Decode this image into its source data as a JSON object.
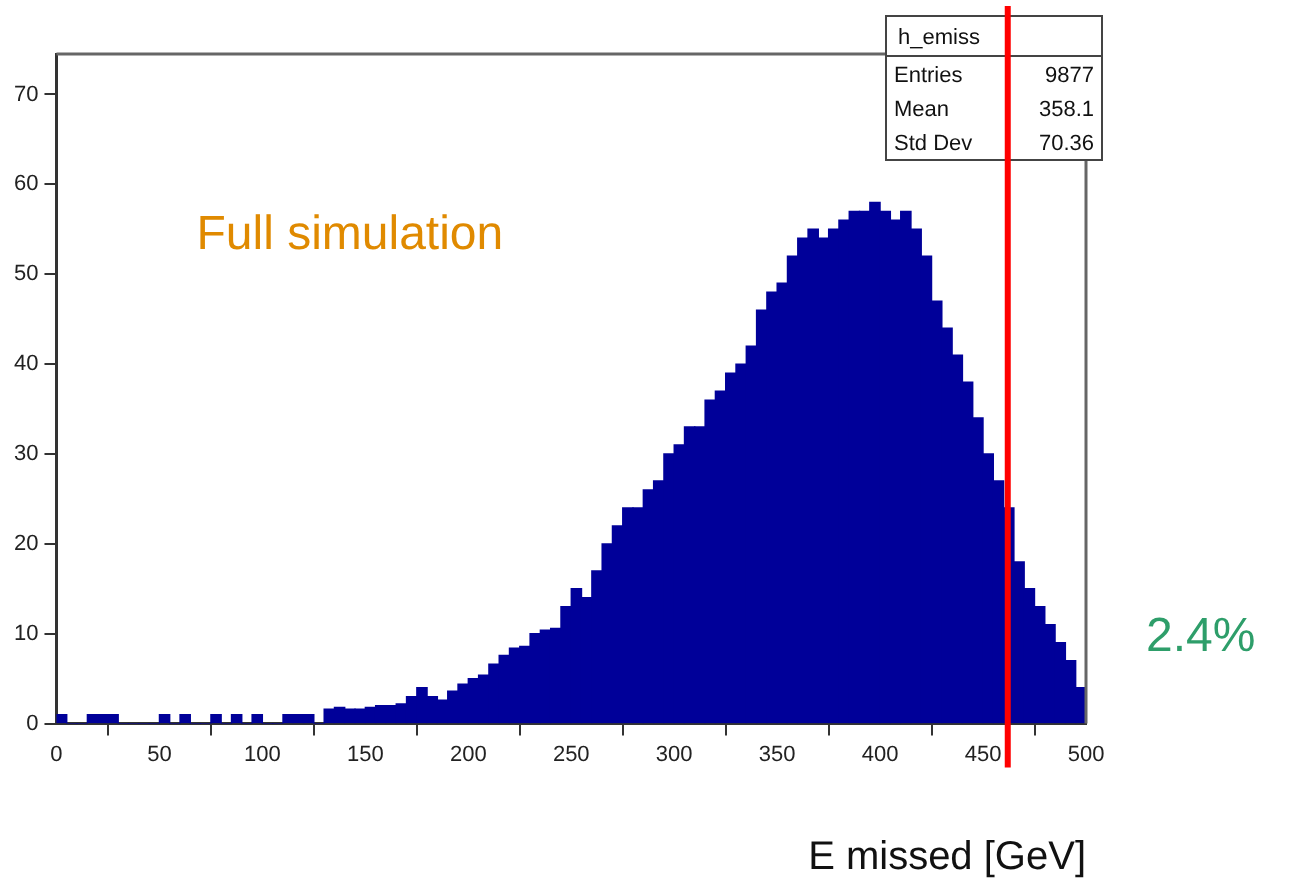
{
  "chart_data": {
    "type": "histogram",
    "xlabel": "E missed [GeV]",
    "bins": [
      0,
      5,
      10,
      15,
      20,
      25,
      30,
      35,
      40,
      45,
      50,
      55,
      60,
      65,
      70,
      75,
      80,
      85,
      90,
      95,
      100,
      105,
      110,
      115,
      120,
      125,
      130,
      135,
      140,
      145,
      150,
      155,
      160,
      165,
      170,
      175,
      180,
      185,
      190,
      195,
      200,
      205,
      210,
      215,
      220,
      225,
      230,
      235,
      240,
      245,
      250,
      255,
      260,
      265,
      270,
      275,
      280,
      285,
      290,
      295,
      300,
      305,
      310,
      315,
      320,
      325,
      330,
      335,
      340,
      345,
      350,
      355,
      360,
      365,
      370,
      375,
      380,
      385,
      390,
      395,
      400,
      405,
      410,
      415,
      420,
      425,
      430,
      435,
      440,
      445,
      450,
      455,
      460,
      465,
      470,
      475,
      480,
      485,
      490,
      495,
      500
    ],
    "values": [
      1,
      0,
      0,
      1,
      1,
      1,
      0,
      0,
      0,
      0,
      1,
      0,
      1,
      0,
      0,
      1,
      0,
      1,
      0,
      1,
      0,
      0,
      1,
      1,
      1,
      0,
      1.6,
      1.8,
      1.6,
      1.6,
      1.8,
      2,
      2,
      2.2,
      3,
      4,
      3,
      2.6,
      3.6,
      4.4,
      5,
      5.4,
      6.6,
      7.6,
      8.4,
      8.6,
      10,
      10.4,
      10.6,
      13,
      15,
      14,
      17,
      20,
      22,
      24,
      24,
      26,
      27,
      30,
      31,
      33,
      33,
      36,
      37,
      39,
      40,
      42,
      46,
      48,
      49,
      52,
      54,
      55,
      54,
      55,
      56,
      57,
      57,
      58,
      57,
      56,
      57,
      55,
      52,
      47,
      44,
      41,
      38,
      34,
      30,
      27,
      24,
      18,
      15,
      13,
      11,
      9,
      7,
      4
    ],
    "color": "#000099",
    "xlim": [
      0,
      500
    ],
    "xticks": [
      0,
      50,
      100,
      150,
      200,
      250,
      300,
      350,
      400,
      450,
      500
    ],
    "ylim": [
      0,
      74.5
    ],
    "yticks": [
      0,
      10,
      20,
      30,
      40,
      50,
      60,
      70
    ],
    "grid": false,
    "legend": false,
    "ref_lines": [
      {
        "axis": "x",
        "value": 462,
        "color": "#ff0000"
      }
    ],
    "annotations": [
      "Full simulation",
      "h_emiss",
      "Entries",
      "9877",
      "Mean",
      "358.1",
      "Std Dev",
      "70.36",
      "2.4%"
    ]
  }
}
